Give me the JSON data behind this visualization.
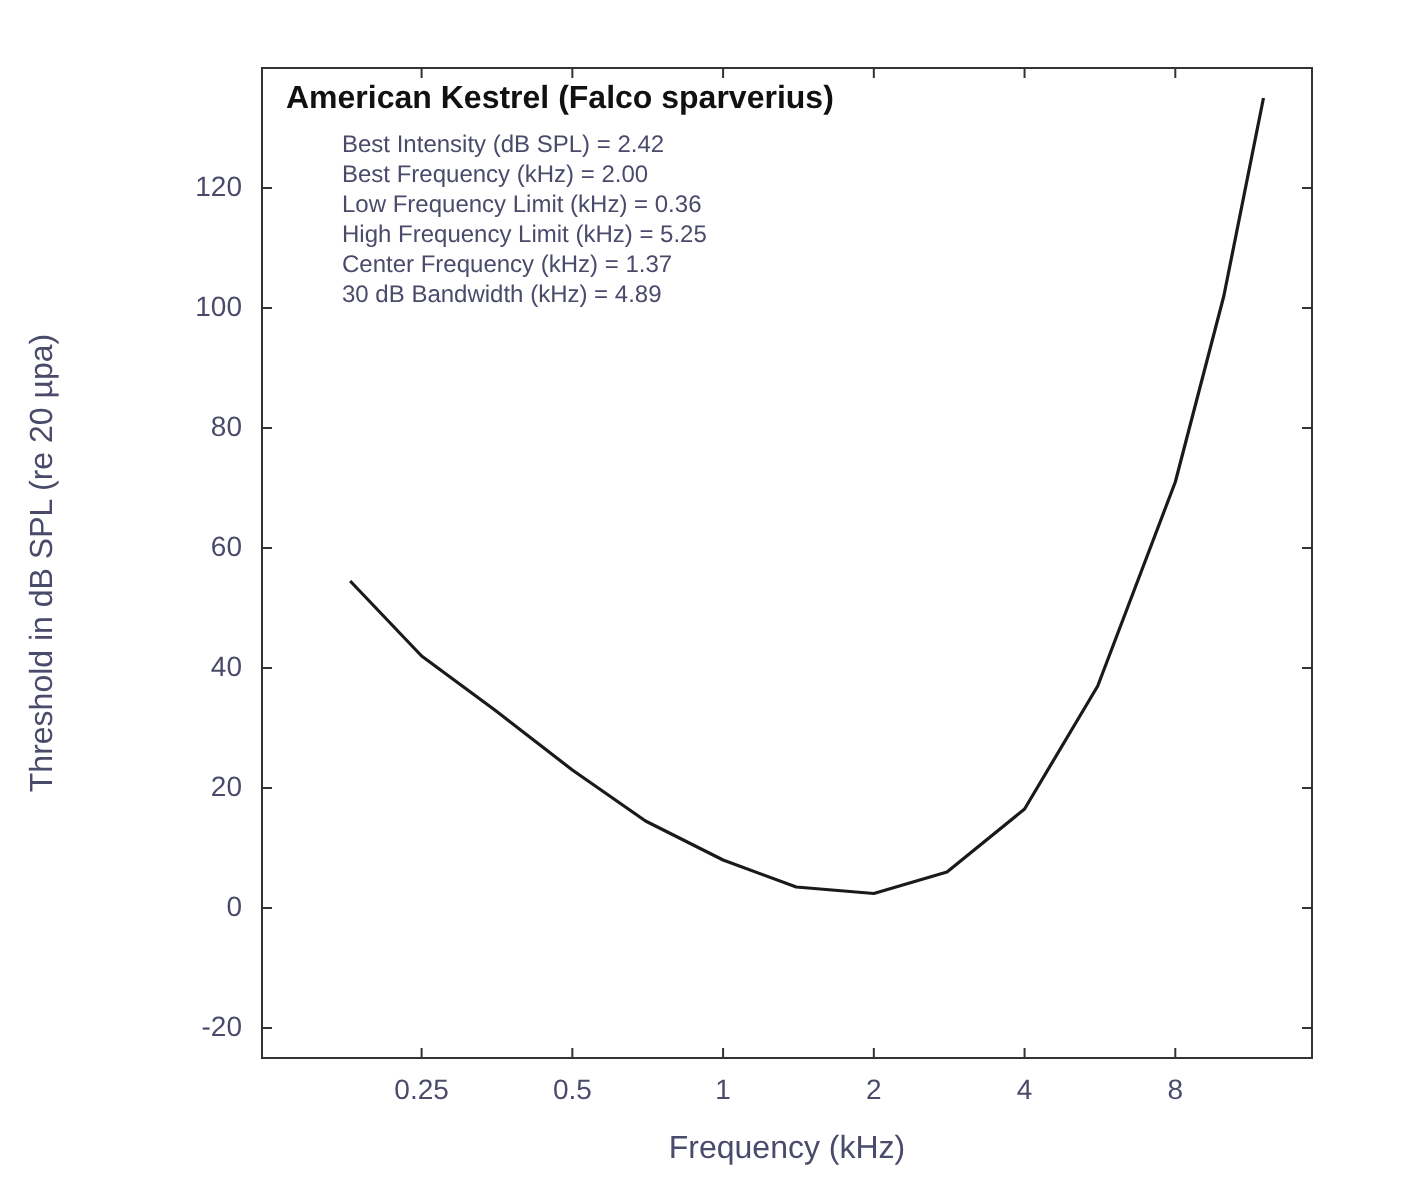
{
  "chart_data": {
    "type": "line",
    "title": "American Kestrel (Falco sparverius)",
    "annotations": [
      "Best Intensity (dB SPL) = 2.42",
      "Best Frequency (kHz) = 2.00",
      "Low Frequency Limit (kHz) = 0.36",
      "High Frequency Limit (kHz) = 5.25",
      "Center Frequency (kHz) = 1.37",
      "30 dB Bandwidth (kHz) = 4.89"
    ],
    "xlabel": "Frequency (kHz)",
    "ylabel": "Threshold in dB SPL (re 20 µpa)",
    "series": [
      {
        "color": "#1a1a1a",
        "x": [
          0.18,
          0.25,
          0.35,
          0.5,
          0.7,
          1,
          1.4,
          2,
          2.8,
          4,
          5.6,
          8,
          10,
          12
        ],
        "values": [
          54.5,
          42,
          33,
          23,
          14.5,
          8,
          3.5,
          2.42,
          6,
          16.5,
          37,
          71,
          102,
          135
        ]
      }
    ],
    "log": "x",
    "xlim": [
      0.12,
      15
    ],
    "xticks": [
      0.25,
      0.5,
      1,
      2,
      4,
      8
    ],
    "ylim": [
      -25,
      140
    ],
    "yticks": [
      -20,
      0,
      20,
      40,
      60,
      80,
      100,
      120
    ],
    "grid": false,
    "legend": false,
    "marker": "none",
    "line_style": "solid"
  }
}
